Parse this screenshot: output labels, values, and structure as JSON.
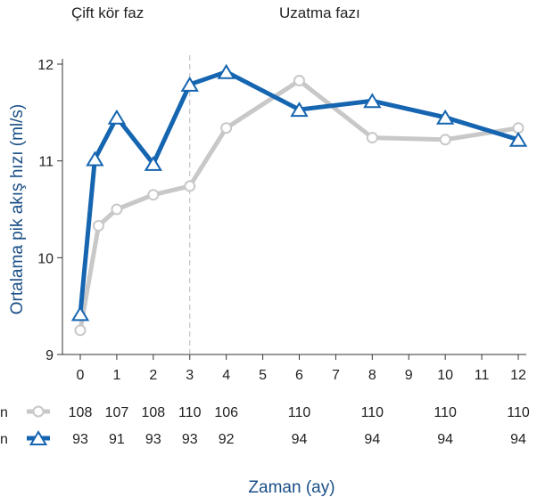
{
  "chart_data": {
    "type": "line",
    "phase_labels": {
      "double_blind": "Çift kör faz",
      "extension": "Uzatma fazı"
    },
    "ylabel": "Ortalama pik akış hızı (ml/s)",
    "xlabel": "Zaman (ay)",
    "ylim": [
      9,
      12
    ],
    "yticks": [
      "9",
      "10",
      "11",
      "12"
    ],
    "xlim": [
      0,
      12
    ],
    "xticks": [
      "0",
      "1",
      "2",
      "3",
      "4",
      "5",
      "6",
      "7",
      "8",
      "9",
      "10",
      "11",
      "12"
    ],
    "phase_divider_x": 3,
    "grid": false,
    "series": [
      {
        "marker": "circle",
        "color": "#c8c8c8",
        "x": [
          0,
          0.5,
          1,
          2,
          3,
          4,
          6,
          8,
          10,
          12
        ],
        "y": [
          9.25,
          10.33,
          10.5,
          10.65,
          10.74,
          11.34,
          11.83,
          11.24,
          11.22,
          11.34
        ]
      },
      {
        "marker": "triangle",
        "color": "#1565b0",
        "x": [
          0,
          0.4,
          1,
          2,
          3,
          4,
          6,
          8,
          10,
          12
        ],
        "y": [
          9.42,
          11.02,
          11.45,
          10.97,
          11.79,
          11.92,
          11.53,
          11.62,
          11.45,
          11.22
        ]
      }
    ],
    "n_table": {
      "label": "n",
      "x": [
        0,
        1,
        2,
        3,
        4,
        6,
        8,
        10,
        12
      ],
      "rows": [
        {
          "marker": "circle",
          "values": [
            "108",
            "107",
            "108",
            "110",
            "106",
            "110",
            "110",
            "110",
            "110"
          ]
        },
        {
          "marker": "triangle",
          "values": [
            "93",
            "91",
            "93",
            "93",
            "92",
            "94",
            "94",
            "94",
            "94"
          ]
        }
      ]
    }
  }
}
